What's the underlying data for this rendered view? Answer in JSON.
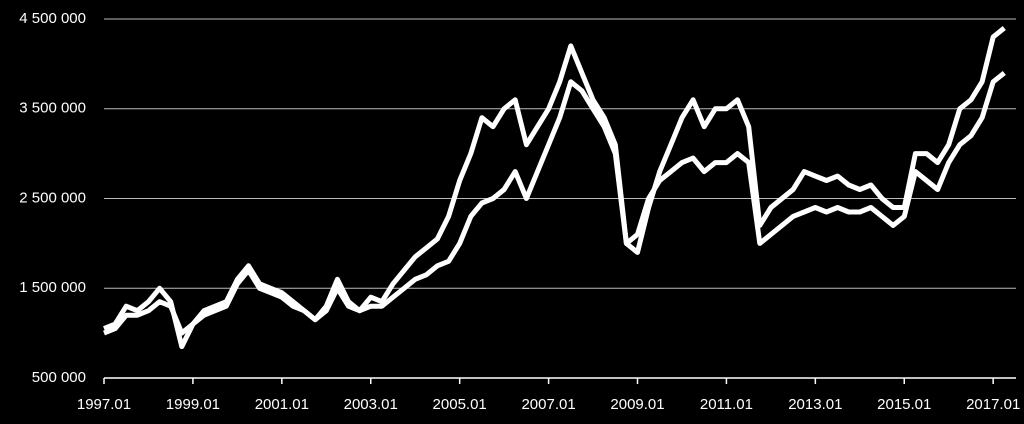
{
  "chart_data": {
    "type": "line",
    "x": [
      "1997.01",
      "1997.04",
      "1997.07",
      "1997.10",
      "1998.01",
      "1998.04",
      "1998.07",
      "1998.10",
      "1999.01",
      "1999.04",
      "1999.07",
      "1999.10",
      "2000.01",
      "2000.04",
      "2000.07",
      "2000.10",
      "2001.01",
      "2001.04",
      "2001.07",
      "2001.10",
      "2002.01",
      "2002.04",
      "2002.07",
      "2002.10",
      "2003.01",
      "2003.04",
      "2003.07",
      "2003.10",
      "2004.01",
      "2004.04",
      "2004.07",
      "2004.10",
      "2005.01",
      "2005.04",
      "2005.07",
      "2005.10",
      "2006.01",
      "2006.04",
      "2006.07",
      "2006.10",
      "2007.01",
      "2007.04",
      "2007.07",
      "2007.10",
      "2008.01",
      "2008.04",
      "2008.07",
      "2008.10",
      "2009.01",
      "2009.04",
      "2009.07",
      "2009.10",
      "2010.01",
      "2010.04",
      "2010.07",
      "2010.10",
      "2011.01",
      "2011.04",
      "2011.07",
      "2011.10",
      "2012.01",
      "2012.04",
      "2012.07",
      "2012.10",
      "2013.01",
      "2013.04",
      "2013.07",
      "2013.10",
      "2014.01",
      "2014.04",
      "2014.07",
      "2014.10",
      "2015.01",
      "2015.04",
      "2015.07",
      "2015.10",
      "2016.01",
      "2016.04",
      "2016.07",
      "2016.10",
      "2017.01",
      "2017.04"
    ],
    "series": [
      {
        "color": "#ffffff",
        "values": [
          1050000,
          1100000,
          1300000,
          1250000,
          1350000,
          1500000,
          1350000,
          850000,
          1100000,
          1250000,
          1300000,
          1350000,
          1600000,
          1750000,
          1550000,
          1500000,
          1450000,
          1350000,
          1250000,
          1150000,
          1300000,
          1600000,
          1350000,
          1250000,
          1400000,
          1350000,
          1550000,
          1700000,
          1850000,
          1950000,
          2050000,
          2300000,
          2700000,
          3000000,
          3400000,
          3300000,
          3500000,
          3600000,
          3100000,
          3300000,
          3500000,
          3800000,
          4200000,
          3900000,
          3600000,
          3400000,
          3100000,
          2000000,
          1900000,
          2400000,
          2800000,
          3100000,
          3400000,
          3600000,
          3300000,
          3500000,
          3500000,
          3600000,
          3300000,
          2200000,
          2400000,
          2500000,
          2600000,
          2800000,
          2750000,
          2700000,
          2750000,
          2650000,
          2600000,
          2650000,
          2500000,
          2400000,
          2400000,
          3000000,
          3000000,
          2900000,
          3100000,
          3500000,
          3600000,
          3800000,
          4300000,
          4400000
        ]
      },
      {
        "color": "#ffffff",
        "values": [
          1000000,
          1050000,
          1200000,
          1200000,
          1250000,
          1350000,
          1300000,
          1000000,
          1100000,
          1200000,
          1250000,
          1300000,
          1550000,
          1700000,
          1500000,
          1450000,
          1400000,
          1300000,
          1250000,
          1150000,
          1250000,
          1500000,
          1300000,
          1250000,
          1300000,
          1300000,
          1400000,
          1500000,
          1600000,
          1650000,
          1750000,
          1800000,
          2000000,
          2300000,
          2450000,
          2500000,
          2600000,
          2800000,
          2500000,
          2800000,
          3100000,
          3400000,
          3800000,
          3700000,
          3500000,
          3300000,
          3000000,
          2000000,
          2100000,
          2500000,
          2700000,
          2800000,
          2900000,
          2950000,
          2800000,
          2900000,
          2900000,
          3000000,
          2900000,
          2000000,
          2100000,
          2200000,
          2300000,
          2350000,
          2400000,
          2350000,
          2400000,
          2350000,
          2350000,
          2400000,
          2300000,
          2200000,
          2300000,
          2800000,
          2700000,
          2600000,
          2900000,
          3100000,
          3200000,
          3400000,
          3800000,
          3900000
        ]
      }
    ],
    "xlim": [
      "1997.01",
      "2017.05"
    ],
    "xticks": [
      "1997.01",
      "1999.01",
      "2001.01",
      "2003.01",
      "2005.01",
      "2007.01",
      "2009.01",
      "2011.01",
      "2013.01",
      "2015.01",
      "2017.01"
    ],
    "ylim": [
      500000,
      4500000
    ],
    "yticks": [
      {
        "value": 500000,
        "label": "500 000"
      },
      {
        "value": 1500000,
        "label": "1 500 000"
      },
      {
        "value": 2500000,
        "label": "2 500 000"
      },
      {
        "value": 3500000,
        "label": "3 500 000"
      },
      {
        "value": 4500000,
        "label": "4 500 000"
      }
    ],
    "grid": true
  }
}
